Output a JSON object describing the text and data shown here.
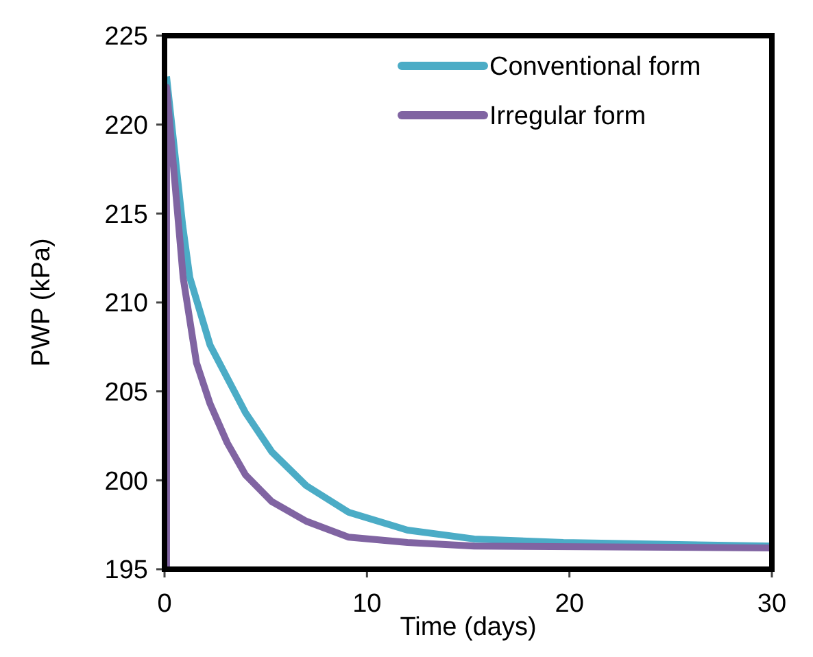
{
  "chart_data": {
    "type": "line",
    "xlabel": "Time (days)",
    "ylabel": "PWP (kPa)",
    "xlim": [
      0,
      30
    ],
    "ylim": [
      195,
      225
    ],
    "xticks": [
      0,
      10,
      20,
      30
    ],
    "yticks": [
      195,
      200,
      205,
      210,
      215,
      220,
      225
    ],
    "grid": false,
    "legend": "top right",
    "marker": "none",
    "line_style": "solid",
    "series": [
      {
        "name": "Conventional form",
        "color": "#4bacc6",
        "x": [
          0.1,
          0.9,
          1.25,
          2.25,
          4.0,
          5.3,
          7.0,
          9.1,
          12,
          15.3,
          19.7,
          30
        ],
        "values": [
          222.7,
          214.3,
          211.4,
          207.6,
          203.8,
          201.6,
          199.7,
          198.2,
          197.2,
          196.7,
          196.5,
          196.3
        ]
      },
      {
        "name": "Irregular form",
        "color": "#8064a2",
        "x": [
          0.1,
          0.1,
          0.7,
          0.92,
          1.58,
          2.25,
          3.1,
          4.0,
          5.3,
          7.0,
          9.1,
          12,
          15.3,
          30
        ],
        "values": [
          195,
          222.1,
          214.3,
          211.4,
          206.6,
          204.3,
          202.1,
          200.3,
          198.8,
          197.7,
          196.8,
          196.5,
          196.3,
          196.2
        ]
      }
    ]
  }
}
